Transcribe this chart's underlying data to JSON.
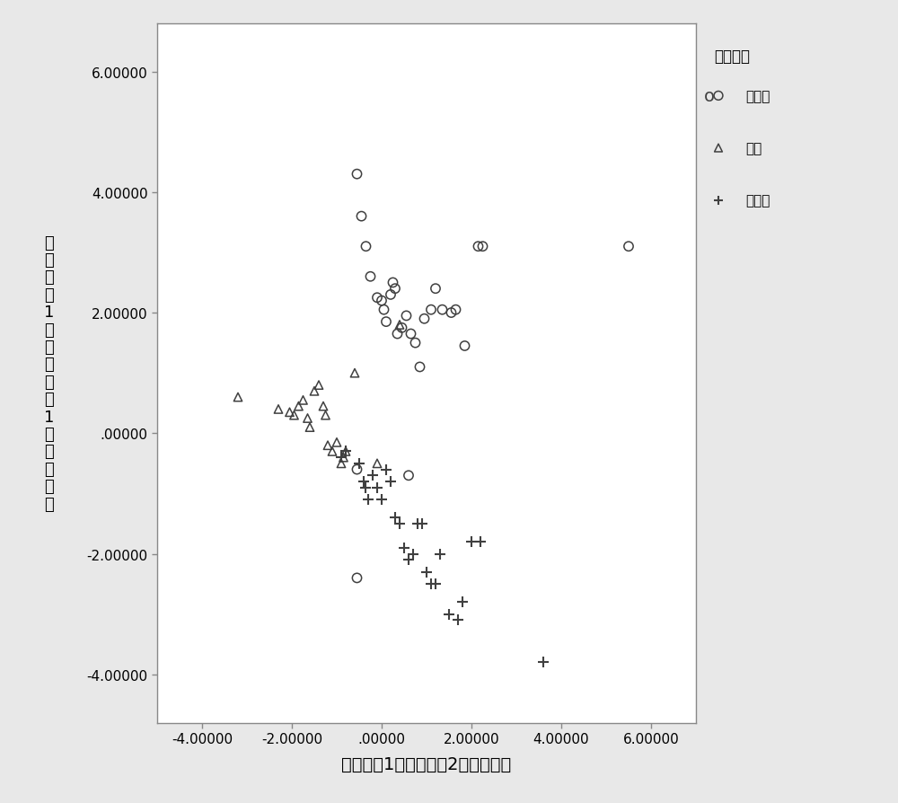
{
  "xlabel": "用于分析1的来自函数2的判别得分",
  "ylabel_chars": [
    "用",
    "于",
    "分",
    "析",
    "1",
    "的",
    "来",
    "自",
    "函",
    "数",
    "1",
    "的",
    "判",
    "别",
    "得",
    "分"
  ],
  "xlim": [
    -5.0,
    7.0
  ],
  "ylim": [
    -4.8,
    6.8
  ],
  "xticks": [
    -4.0,
    -2.0,
    0.0,
    2.0,
    4.0,
    6.0
  ],
  "yticks": [
    -4.0,
    -2.0,
    0.0,
    2.0,
    4.0,
    6.0
  ],
  "legend_title": "地域编码",
  "legend_labels": [
    "建三江",
    "五常",
    "查哈阳"
  ],
  "background_color": "#e8e8e8",
  "plot_bg_color": "#ffffff",
  "marker_color": "#404040",
  "jiansanjiang_x": [
    -0.55,
    -0.45,
    -0.35,
    -0.25,
    -0.1,
    0.0,
    0.05,
    0.1,
    0.2,
    0.25,
    0.3,
    0.35,
    0.45,
    0.55,
    0.65,
    0.75,
    0.85,
    0.95,
    1.1,
    1.2,
    1.35,
    1.55,
    1.65,
    1.85,
    2.15,
    2.25,
    5.5,
    -0.55,
    -0.55,
    0.6
  ],
  "jiansanjiang_y": [
    4.3,
    3.6,
    3.1,
    2.6,
    2.25,
    2.2,
    2.05,
    1.85,
    2.3,
    2.5,
    2.4,
    1.65,
    1.75,
    1.95,
    1.65,
    1.5,
    1.1,
    1.9,
    2.05,
    2.4,
    2.05,
    2.0,
    2.05,
    1.45,
    3.1,
    3.1,
    3.1,
    -0.6,
    -2.4,
    -0.7
  ],
  "wuchang_x": [
    -3.2,
    -2.3,
    -2.05,
    -1.95,
    -1.85,
    -1.75,
    -1.65,
    -1.6,
    -1.5,
    -1.4,
    -1.3,
    -1.25,
    -1.2,
    -1.1,
    -1.0,
    -0.9,
    -0.85,
    -0.8,
    -0.6,
    -0.1,
    0.4
  ],
  "wuchang_y": [
    0.6,
    0.4,
    0.35,
    0.3,
    0.45,
    0.55,
    0.25,
    0.1,
    0.7,
    0.8,
    0.45,
    0.3,
    -0.2,
    -0.3,
    -0.15,
    -0.5,
    -0.4,
    -0.3,
    1.0,
    -0.5,
    1.8
  ],
  "chahayan_x": [
    -0.9,
    -0.8,
    -0.5,
    -0.4,
    -0.35,
    -0.3,
    -0.2,
    -0.1,
    0.0,
    0.1,
    0.2,
    0.3,
    0.4,
    0.5,
    0.6,
    0.7,
    0.8,
    0.9,
    1.0,
    1.1,
    1.2,
    1.3,
    1.5,
    1.7,
    1.8,
    2.0,
    2.2,
    3.6
  ],
  "chahayan_y": [
    -0.4,
    -0.3,
    -0.5,
    -0.8,
    -0.9,
    -1.1,
    -0.7,
    -0.9,
    -1.1,
    -0.6,
    -0.8,
    -1.4,
    -1.5,
    -1.9,
    -2.1,
    -2.0,
    -1.5,
    -1.5,
    -2.3,
    -2.5,
    -2.5,
    -2.0,
    -3.0,
    -3.1,
    -2.8,
    -1.8,
    -1.8,
    -3.8
  ]
}
